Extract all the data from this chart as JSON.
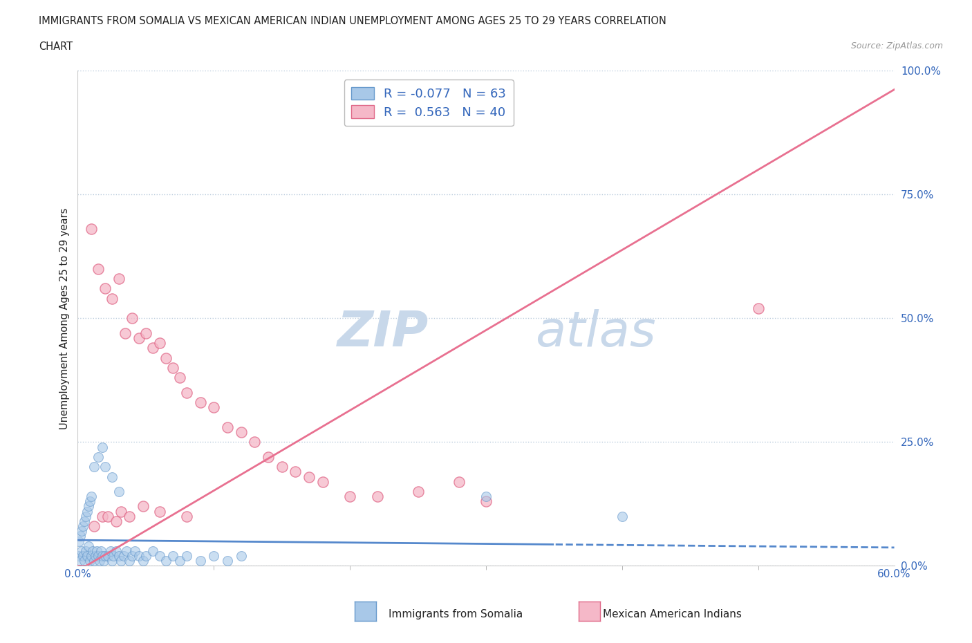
{
  "title_line1": "IMMIGRANTS FROM SOMALIA VS MEXICAN AMERICAN INDIAN UNEMPLOYMENT AMONG AGES 25 TO 29 YEARS CORRELATION",
  "title_line2": "CHART",
  "source_text": "Source: ZipAtlas.com",
  "ylabel": "Unemployment Among Ages 25 to 29 years",
  "xlim": [
    0.0,
    0.6
  ],
  "ylim": [
    0.0,
    1.0
  ],
  "yticks_right": [
    0.0,
    0.25,
    0.5,
    0.75,
    1.0
  ],
  "yticklabels_right": [
    "0.0%",
    "25.0%",
    "50.0%",
    "75.0%",
    "100.0%"
  ],
  "background_color": "#ffffff",
  "watermark_text1": "ZIP",
  "watermark_text2": "atlas",
  "watermark_color": "#c8d8ea",
  "somalia_color": "#a8c8e8",
  "somalia_edge": "#6699cc",
  "mexico_color": "#f5b8c8",
  "mexico_edge": "#e06888",
  "somalia_line_color": "#5588cc",
  "mexico_line_color": "#e87090",
  "legend_somalia_label": "R = -0.077   N = 63",
  "legend_mexico_label": "R =  0.563   N = 40",
  "grid_color": "#bbccdd",
  "grid_linestyle": ":",
  "somalia_intercept": 0.052,
  "somalia_slope": -0.025,
  "mexico_intercept": -0.01,
  "mexico_slope": 1.62,
  "somalia_x": [
    0.001,
    0.002,
    0.003,
    0.004,
    0.005,
    0.006,
    0.007,
    0.008,
    0.009,
    0.01,
    0.011,
    0.012,
    0.013,
    0.014,
    0.015,
    0.016,
    0.017,
    0.018,
    0.019,
    0.02,
    0.022,
    0.024,
    0.025,
    0.026,
    0.028,
    0.03,
    0.032,
    0.034,
    0.036,
    0.038,
    0.04,
    0.042,
    0.045,
    0.048,
    0.05,
    0.055,
    0.06,
    0.065,
    0.07,
    0.075,
    0.08,
    0.09,
    0.1,
    0.11,
    0.12,
    0.001,
    0.002,
    0.003,
    0.004,
    0.005,
    0.006,
    0.007,
    0.008,
    0.009,
    0.01,
    0.012,
    0.015,
    0.018,
    0.02,
    0.025,
    0.03,
    0.3,
    0.4
  ],
  "somalia_y": [
    0.02,
    0.01,
    0.03,
    0.02,
    0.01,
    0.03,
    0.02,
    0.04,
    0.01,
    0.02,
    0.03,
    0.01,
    0.02,
    0.03,
    0.02,
    0.01,
    0.03,
    0.02,
    0.01,
    0.02,
    0.02,
    0.03,
    0.01,
    0.02,
    0.03,
    0.02,
    0.01,
    0.02,
    0.03,
    0.01,
    0.02,
    0.03,
    0.02,
    0.01,
    0.02,
    0.03,
    0.02,
    0.01,
    0.02,
    0.01,
    0.02,
    0.01,
    0.02,
    0.01,
    0.02,
    0.05,
    0.06,
    0.07,
    0.08,
    0.09,
    0.1,
    0.11,
    0.12,
    0.13,
    0.14,
    0.2,
    0.22,
    0.24,
    0.2,
    0.18,
    0.15,
    0.14,
    0.1
  ],
  "mexico_x": [
    0.01,
    0.015,
    0.02,
    0.025,
    0.03,
    0.035,
    0.04,
    0.045,
    0.05,
    0.055,
    0.06,
    0.065,
    0.07,
    0.075,
    0.08,
    0.09,
    0.1,
    0.11,
    0.12,
    0.13,
    0.14,
    0.15,
    0.16,
    0.17,
    0.18,
    0.2,
    0.22,
    0.25,
    0.28,
    0.3,
    0.012,
    0.018,
    0.022,
    0.028,
    0.032,
    0.038,
    0.048,
    0.06,
    0.08,
    0.5
  ],
  "mexico_y": [
    0.68,
    0.6,
    0.56,
    0.54,
    0.58,
    0.47,
    0.5,
    0.46,
    0.47,
    0.44,
    0.45,
    0.42,
    0.4,
    0.38,
    0.35,
    0.33,
    0.32,
    0.28,
    0.27,
    0.25,
    0.22,
    0.2,
    0.19,
    0.18,
    0.17,
    0.14,
    0.14,
    0.15,
    0.17,
    0.13,
    0.08,
    0.1,
    0.1,
    0.09,
    0.11,
    0.1,
    0.12,
    0.11,
    0.1,
    0.52
  ]
}
